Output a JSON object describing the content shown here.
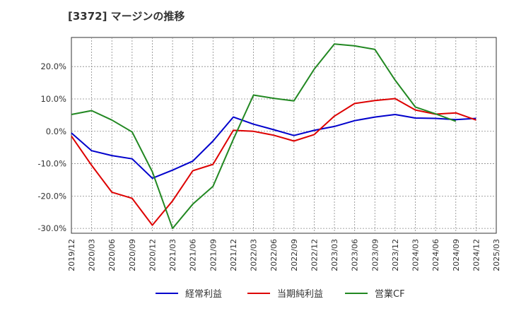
{
  "chart_data": {
    "type": "line",
    "title": "[3372]  マージンの推移",
    "x": [
      "2019/12",
      "2020/03",
      "2020/06",
      "2020/09",
      "2020/12",
      "2021/03",
      "2021/06",
      "2021/09",
      "2021/12",
      "2022/03",
      "2022/06",
      "2022/09",
      "2022/12",
      "2023/03",
      "2023/06",
      "2023/09",
      "2023/12",
      "2024/03",
      "2024/06",
      "2024/09",
      "2024/12",
      "2025/03"
    ],
    "yticks": [
      "20.0%",
      "10.0%",
      "0.0%",
      "-10.0%",
      "-20.0%",
      "-30.0%"
    ],
    "ylim": [
      -31.5,
      29
    ],
    "grid": true,
    "legend_position": "bottom",
    "series": [
      {
        "name": "経常利益",
        "color": "#0000cc",
        "values": [
          -0.5,
          -6.0,
          -7.5,
          -8.5,
          -14.5,
          -12.0,
          -9.2,
          -3.0,
          4.4,
          2.2,
          0.5,
          -1.3,
          0.3,
          1.5,
          3.3,
          4.4,
          5.2,
          4.1,
          4.0,
          3.6,
          4.0,
          null
        ]
      },
      {
        "name": "当期純利益",
        "color": "#dd0000",
        "values": [
          -1.5,
          -10.5,
          -18.8,
          -20.7,
          -29.0,
          -21.5,
          -12.2,
          -10.2,
          0.3,
          0.0,
          -1.2,
          -3.0,
          -1.0,
          4.7,
          8.6,
          9.5,
          10.1,
          6.6,
          5.3,
          5.7,
          3.5,
          null
        ]
      },
      {
        "name": "営業CF",
        "color": "#228822",
        "values": [
          5.2,
          6.4,
          3.5,
          -0.2,
          -12.5,
          -30.0,
          -22.5,
          -17.0,
          -2.5,
          11.2,
          10.2,
          9.4,
          19.2,
          27.0,
          26.4,
          25.3,
          15.8,
          7.5,
          5.4,
          3.1,
          null,
          null
        ]
      }
    ]
  }
}
